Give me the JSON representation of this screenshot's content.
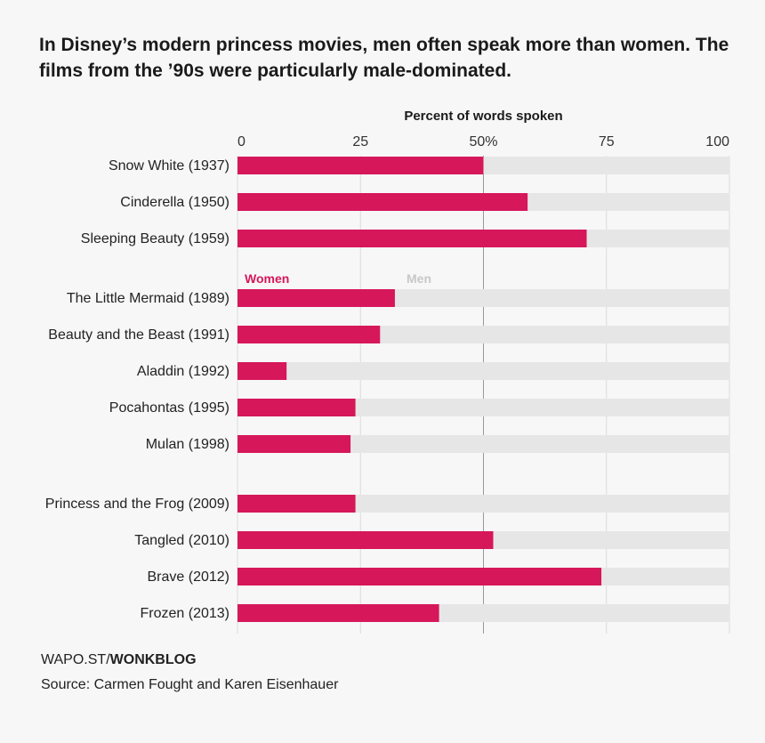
{
  "title": "In Disney’s modern princess movies, men often speak more than women. The films from the ’90s were particularly male-dominated.",
  "chart_data": {
    "type": "bar",
    "orientation": "horizontal",
    "stacked": true,
    "title": "",
    "xlabel": "Percent of words spoken",
    "xlim": [
      0,
      100
    ],
    "xticks": [
      "0",
      "25",
      "50%",
      "75",
      "100"
    ],
    "grid": true,
    "categories": [
      "Snow White (1937)",
      "Cinderella (1950)",
      "Sleeping Beauty (1959)",
      "The Little Mermaid (1989)",
      "Beauty and the Beast (1991)",
      "Aladdin (1992)",
      "Pocahontas (1995)",
      "Mulan (1998)",
      "Princess and the Frog (2009)",
      "Tangled (2010)",
      "Brave (2012)",
      "Frozen (2013)"
    ],
    "groups": [
      [
        0,
        1,
        2
      ],
      [
        3,
        4,
        5,
        6,
        7
      ],
      [
        8,
        9,
        10,
        11
      ]
    ],
    "series": [
      {
        "name": "Women",
        "color": "#d6175a",
        "values": [
          50,
          59,
          71,
          32,
          29,
          10,
          24,
          23,
          24,
          52,
          74,
          41
        ]
      },
      {
        "name": "Men",
        "color": "#e6e6e6",
        "values": [
          50,
          41,
          29,
          68,
          71,
          90,
          76,
          77,
          76,
          48,
          26,
          59
        ]
      }
    ],
    "legend_colors": {
      "Women": "#d6175a",
      "Men": "#c8c8c8"
    }
  },
  "footer": {
    "credit_prefix": "WAPO.ST/",
    "credit_bold": "WONKBLOG",
    "source": "Source: Carmen Fought and Karen Eisenhauer"
  }
}
